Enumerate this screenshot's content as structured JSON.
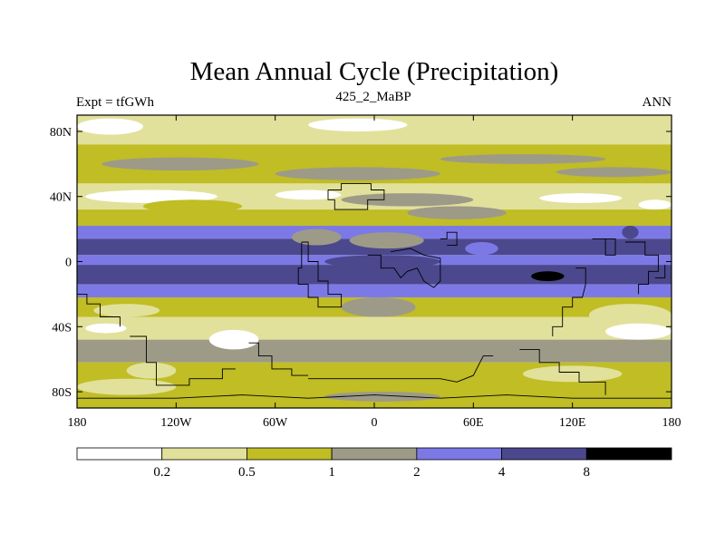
{
  "chart_data": {
    "type": "heatmap",
    "title": "Mean Annual Cycle (Precipitation)",
    "subtitle_left": "Expt = tfGWh",
    "subtitle_center": "425_2_MaBP",
    "subtitle_right": "ANN",
    "x_ticks": [
      {
        "value": -180,
        "label": "180"
      },
      {
        "value": -120,
        "label": "120W"
      },
      {
        "value": -60,
        "label": "60W"
      },
      {
        "value": 0,
        "label": "0"
      },
      {
        "value": 60,
        "label": "60E"
      },
      {
        "value": 120,
        "label": "120E"
      },
      {
        "value": 180,
        "label": "180"
      }
    ],
    "y_ticks": [
      {
        "value": 80,
        "label": "80N"
      },
      {
        "value": 40,
        "label": "40N"
      },
      {
        "value": 0,
        "label": "0"
      },
      {
        "value": -40,
        "label": "40S"
      },
      {
        "value": -80,
        "label": "80S"
      }
    ],
    "xlim": [
      -180,
      180
    ],
    "ylim": [
      -90,
      90
    ],
    "levels": [
      0.2,
      0.5,
      1,
      2,
      4,
      8
    ],
    "level_labels": [
      "0.2",
      "0.5",
      "1",
      "2",
      "4",
      "8"
    ],
    "colors": [
      "#ffffff",
      "#e1e19b",
      "#c0bd25",
      "#9d9a88",
      "#7c79e6",
      "#4b488d",
      "#000000"
    ],
    "coast_color": "#000000",
    "zonal_bands": [
      {
        "lat": [
          72,
          90
        ],
        "level": 1,
        "note": "0.2-0.5"
      },
      {
        "lat": [
          48,
          72
        ],
        "level": 2,
        "note": "0.5-1 with 1-2 streaks"
      },
      {
        "lat": [
          32,
          48
        ],
        "level": 1,
        "note": "0.2-0.5 with 0-0.2 patches"
      },
      {
        "lat": [
          22,
          32
        ],
        "level": 2,
        "note": "0.5-1"
      },
      {
        "lat": [
          14,
          22
        ],
        "level": 4,
        "note": "2-4"
      },
      {
        "lat": [
          4,
          14
        ],
        "level": 5,
        "note": "4-8"
      },
      {
        "lat": [
          -2,
          4
        ],
        "level": 4,
        "note": "2-4"
      },
      {
        "lat": [
          -14,
          -2
        ],
        "level": 5,
        "note": "4-8"
      },
      {
        "lat": [
          -22,
          -14
        ],
        "level": 4,
        "note": "2-4"
      },
      {
        "lat": [
          -34,
          -22
        ],
        "level": 2,
        "note": "0.5-1"
      },
      {
        "lat": [
          -48,
          -34
        ],
        "level": 1,
        "note": "0.2-0.5"
      },
      {
        "lat": [
          -62,
          -48
        ],
        "level": 3,
        "note": "1-2"
      },
      {
        "lat": [
          -90,
          -62
        ],
        "level": 2,
        "note": "0.5-1"
      }
    ]
  }
}
